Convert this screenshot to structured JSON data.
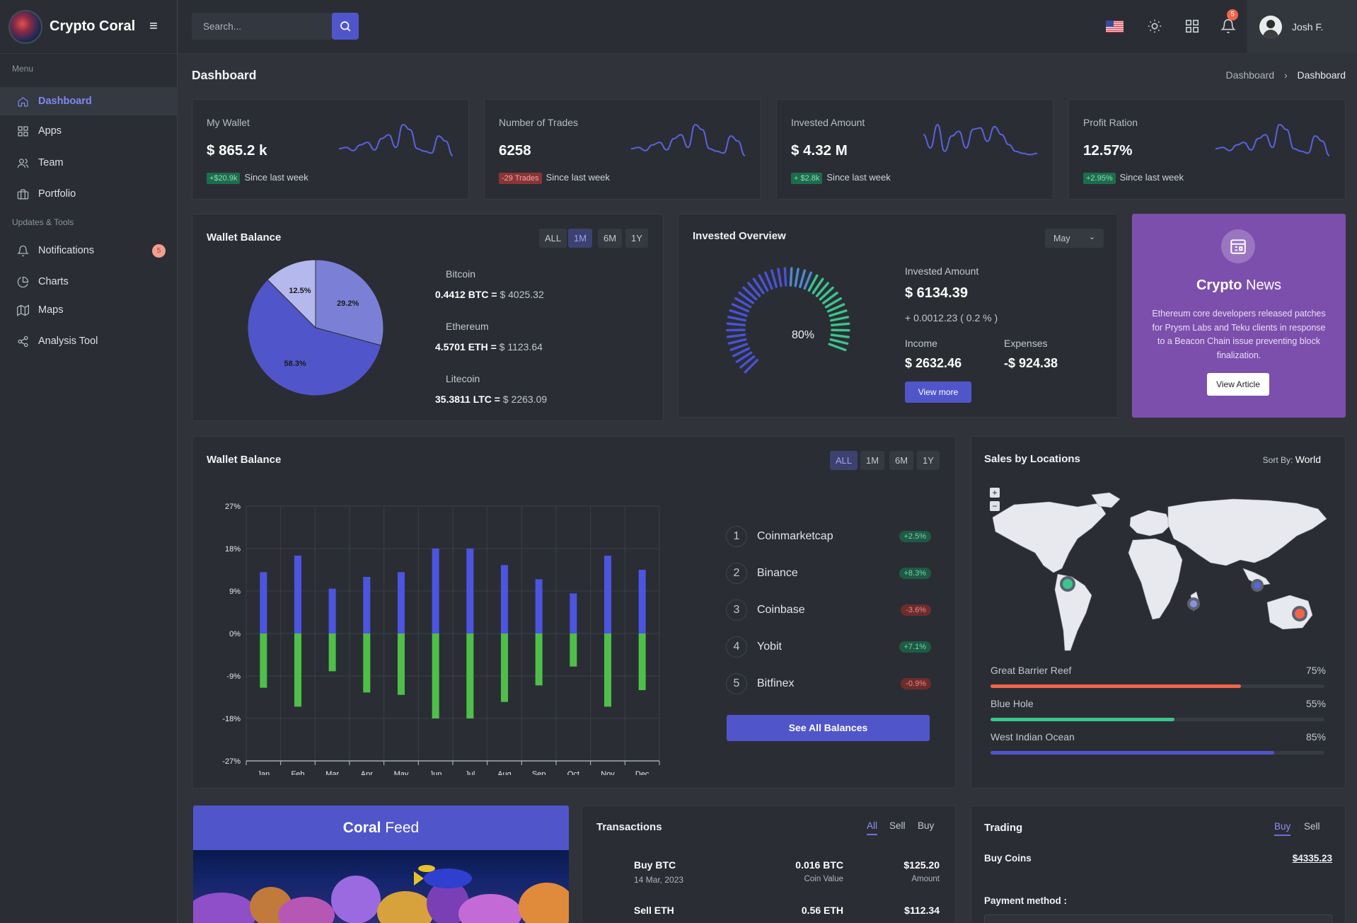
{
  "app": {
    "name": "Crypto Coral",
    "search_placeholder": "Search...",
    "notif_count": "5",
    "user": "Josh F."
  },
  "sidebar": {
    "menu_heading": "Menu",
    "tools_heading": "Updates & Tools",
    "items": [
      {
        "label": "Dashboard",
        "icon": "home-icon"
      },
      {
        "label": "Apps",
        "icon": "grid-icon"
      },
      {
        "label": "Team",
        "icon": "users-icon"
      },
      {
        "label": "Portfolio",
        "icon": "briefcase-icon"
      },
      {
        "label": "Notifications",
        "icon": "bell-icon",
        "badge": "5"
      },
      {
        "label": "Charts",
        "icon": "pie-chart-icon"
      },
      {
        "label": "Maps",
        "icon": "map-icon"
      },
      {
        "label": "Analysis Tool",
        "icon": "share-icon"
      }
    ]
  },
  "page": {
    "title": "Dashboard",
    "crumb1": "Dashboard",
    "crumb2": "Dashboard"
  },
  "stats": [
    {
      "label": "My Wallet",
      "value": "$ 865.2 k",
      "chip": "+$20.9k",
      "chip_type": "up",
      "foot": "Since last week",
      "spark": [
        20,
        22,
        17,
        26,
        30,
        18,
        36,
        42,
        22,
        58,
        50,
        20,
        16,
        13,
        40,
        32,
        9
      ]
    },
    {
      "label": "Number of Trades",
      "value": "6258",
      "chip": "-29 Trades",
      "chip_type": "down",
      "foot": "Since last week",
      "spark": [
        20,
        22,
        17,
        26,
        30,
        18,
        36,
        42,
        22,
        58,
        50,
        20,
        16,
        13,
        40,
        32,
        9
      ]
    },
    {
      "label": "Invested Amount",
      "value": "$ 4.32 M",
      "chip": "+ $2.8k",
      "chip_type": "up",
      "foot": "Since last week",
      "spark": [
        40,
        20,
        55,
        15,
        38,
        45,
        20,
        48,
        50,
        30,
        52,
        40,
        25,
        15,
        12,
        10,
        12
      ]
    },
    {
      "label": "Profit Ration",
      "value": "12.57%",
      "chip": "+2.95%",
      "chip_type": "up",
      "foot": "Since last week",
      "spark": [
        20,
        22,
        17,
        26,
        30,
        18,
        36,
        42,
        22,
        58,
        50,
        20,
        16,
        13,
        40,
        32,
        9
      ]
    }
  ],
  "wallet_pie": {
    "title": "Wallet Balance",
    "periods": [
      "ALL",
      "1M",
      "6M",
      "1Y"
    ],
    "active_period": "1M",
    "coins": [
      {
        "name": "Bitcoin",
        "amount": "0.4412 BTC =",
        "value": "$ 4025.32"
      },
      {
        "name": "Ethereum",
        "amount": "4.5701 ETH =",
        "value": "$ 1123.64"
      },
      {
        "name": "Litecoin",
        "amount": "35.3811 LTC =",
        "value": "$ 2263.09"
      }
    ],
    "chart_data": {
      "type": "pie",
      "values": [
        29.2,
        58.3,
        12.5
      ],
      "labels": [
        "29.2%",
        "58.3%",
        "12.5%"
      ],
      "colors": [
        "#7b80d6",
        "#5056c9",
        "#b5b8ec"
      ]
    }
  },
  "invested": {
    "title": "Invested Overview",
    "month": "May",
    "gauge": "80%",
    "amount_label": "Invested Amount",
    "amount": "$ 6134.39",
    "change": "+ 0.0012.23 ( 0.2 % )",
    "income_label": "Income",
    "income": "$ 2632.46",
    "expense_label": "Expenses",
    "expense": "-$ 924.38",
    "button": "View more"
  },
  "news": {
    "title_bold": "Crypto",
    "title_rest": " News",
    "text": "Ethereum core developers released patches for Prysm Labs and Teku clients in response to a Beacon Chain issue preventing block finalization.",
    "button": "View Article"
  },
  "wallet_bar": {
    "title": "Wallet Balance",
    "periods": [
      "ALL",
      "1M",
      "6M",
      "1Y"
    ],
    "active_period": "ALL",
    "chart_data": {
      "type": "bar",
      "categories": [
        "Jan",
        "Feb",
        "Mar",
        "Apr",
        "May",
        "Jun",
        "Jul",
        "Aug",
        "Sep",
        "Oct",
        "Nov",
        "Dec"
      ],
      "series": [
        {
          "name": "",
          "color": "#4c55e0",
          "values": [
            13,
            16.5,
            9.5,
            12,
            13,
            18,
            18,
            14.5,
            11.5,
            8.5,
            16.5,
            13.5
          ]
        },
        {
          "name": "",
          "color": "#4fbf4a",
          "values": [
            -11.5,
            -15.5,
            -8,
            -12.5,
            -13,
            -18,
            -18,
            -14.5,
            -11,
            -7,
            -15.5,
            -12
          ]
        }
      ],
      "yticks": [
        "27%",
        "18%",
        "9%",
        "0%",
        "-9%",
        "-18%",
        "-27%"
      ],
      "ylim": [
        -27,
        27
      ]
    }
  },
  "rankings": [
    {
      "num": "1",
      "name": "Coinmarketcap",
      "chip": "+2.5%",
      "type": "up"
    },
    {
      "num": "2",
      "name": "Binance",
      "chip": "+8.3%",
      "type": "up"
    },
    {
      "num": "3",
      "name": "Coinbase",
      "chip": "-3.6%",
      "type": "down"
    },
    {
      "num": "4",
      "name": "Yobit",
      "chip": "+7.1%",
      "type": "up"
    },
    {
      "num": "5",
      "name": "Bitfinex",
      "chip": "-0.9%",
      "type": "down"
    }
  ],
  "see_all": "See All Balances",
  "locations": {
    "title": "Sales by Locations",
    "sort_label": "Sort By:",
    "sort_value": "World",
    "zoom_in": "+",
    "zoom_out": "−",
    "items": [
      {
        "name": "Great Barrier Reef",
        "pct": "75%",
        "fill": 0.75,
        "color": "#f06548"
      },
      {
        "name": "Blue Hole",
        "pct": "55%",
        "fill": 0.55,
        "color": "#3cc48d"
      },
      {
        "name": "West Indian Ocean",
        "pct": "85%",
        "fill": 0.85,
        "color": "#5056c9"
      }
    ]
  },
  "feed": {
    "title_bold": "Coral",
    "title_rest": " Feed"
  },
  "transactions": {
    "title": "Transactions",
    "tabs": [
      "All",
      "Sell",
      "Buy"
    ],
    "rows": [
      {
        "title": "Buy BTC",
        "date": "14 Mar, 2023",
        "coin": "0.016 BTC",
        "coin_label": "Coin Value",
        "amount": "$125.20",
        "amount_label": "Amount"
      },
      {
        "title": "Sell ETH",
        "date": "",
        "coin": "0.56 ETH",
        "coin_label": "",
        "amount": "$112.34",
        "amount_label": ""
      }
    ]
  },
  "trading": {
    "title": "Trading",
    "tabs": [
      "Buy",
      "Sell"
    ],
    "buy_label": "Buy Coins",
    "buy_value": "$4335.23",
    "payment_label": "Payment method :"
  }
}
